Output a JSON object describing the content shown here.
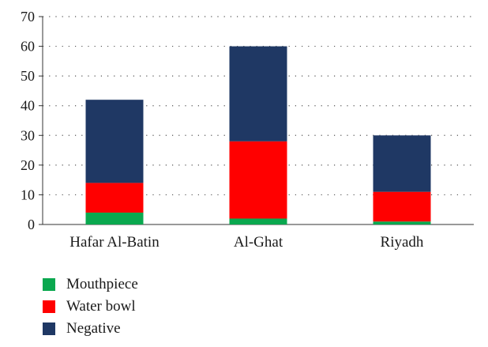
{
  "chart_data": {
    "type": "bar",
    "stacked": true,
    "categories": [
      "Hafar Al-Batin",
      "Al-Ghat",
      "Riyadh"
    ],
    "series": [
      {
        "name": "Mouthpiece",
        "values": [
          4,
          2,
          1
        ],
        "color": "#0aa84f"
      },
      {
        "name": "Water bowl",
        "values": [
          10,
          26,
          10
        ],
        "color": "#ff0000"
      },
      {
        "name": "Negative",
        "values": [
          28,
          32,
          19
        ],
        "color": "#1f3864"
      }
    ],
    "yticks": [
      0,
      10,
      20,
      30,
      40,
      50,
      60,
      70
    ],
    "ylim": [
      0,
      70
    ],
    "grid": "dotted horizontal",
    "legend_position": "bottom-left"
  }
}
